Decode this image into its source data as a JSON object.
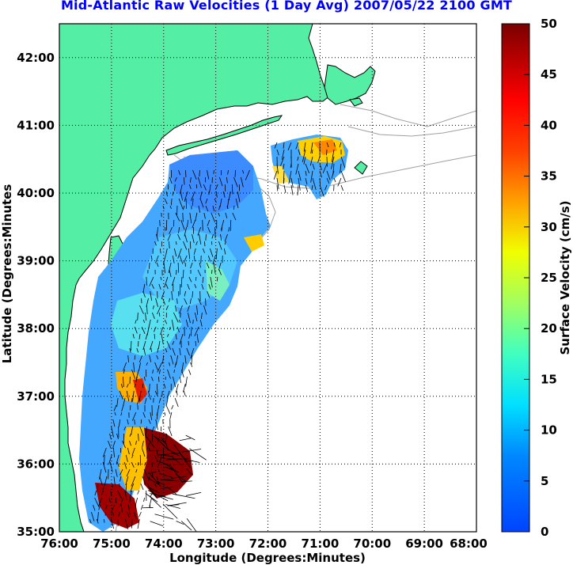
{
  "title": "Mid-Atlantic Raw Velocities (1 Day Avg) 2007/05/22 2100 GMT",
  "axes": {
    "xlabel": "Longitude (Degrees:Minutes)",
    "ylabel": "Latitude (Degrees:Minutes",
    "xticks": [
      "76:00",
      "75:00",
      "74:00",
      "73:00",
      "72:00",
      "71:00",
      "70:00",
      "69:00",
      "68:00"
    ],
    "yticks": [
      "35:00",
      "36:00",
      "37:00",
      "38:00",
      "39:00",
      "40:00",
      "41:00",
      "42:00"
    ],
    "xlim": [
      -76,
      -68
    ],
    "ylim": [
      35,
      42.5
    ],
    "grid": true
  },
  "colorbar": {
    "label": "Surface Velocity (cm/s)",
    "ticks": [
      "0",
      "5",
      "10",
      "15",
      "20",
      "25",
      "30",
      "35",
      "40",
      "45",
      "50"
    ],
    "range": [
      0,
      50
    ],
    "colormap": "jet"
  },
  "colors": {
    "land": "#55eea5",
    "coastline": "#000000",
    "bathymetry": "#a0a0a0",
    "title": "#0000ff",
    "grid": "#000000"
  }
}
